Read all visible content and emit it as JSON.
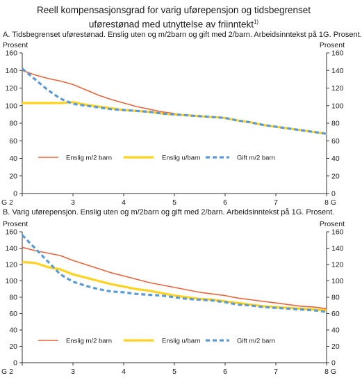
{
  "figure": {
    "title_line1": "Reell kompensasjonsgrad for varig uførepensjon og tidsbegrenset",
    "title_line2": "uførestønad med utnyttelse av friinntekt",
    "title_footnote": "1)"
  },
  "colors": {
    "enslig_m2_barn": "#e8643a",
    "enslig_u_barn": "#ffd21f",
    "gift_m2_barn": "#5b9bd5",
    "axis": "#333333"
  },
  "chart_data": [
    {
      "type": "line",
      "panel_title": "A.  Tidsbegrenset uførestønad. Enslig uten og m/2barn og gift med 2/barn. Arbeidsinntekst på 1G. Prosent.",
      "ylabel_left": "Prosent",
      "ylabel_right": "Prosent",
      "ylim": [
        0,
        160
      ],
      "yticks": [
        0,
        20,
        40,
        60,
        80,
        100,
        120,
        140,
        160
      ],
      "xlim": [
        2,
        8
      ],
      "xticks": [
        2,
        3,
        4,
        5,
        6,
        7,
        8
      ],
      "xtick_labels": [
        "G 2",
        "3",
        "4",
        "5",
        "6",
        "7",
        "8 G"
      ],
      "legend_position": "inside-bottom",
      "x": [
        2.0,
        2.25,
        2.5,
        2.75,
        3.0,
        3.25,
        3.5,
        3.75,
        4.0,
        4.25,
        4.5,
        4.75,
        5.0,
        5.25,
        5.5,
        5.75,
        6.0,
        6.25,
        6.5,
        6.75,
        7.0,
        7.25,
        7.5,
        7.75,
        8.0
      ],
      "series": [
        {
          "name": "Enslig m/2 barn",
          "color_key": "enslig_m2_barn",
          "values": [
            140,
            135,
            131,
            128,
            124,
            118,
            112,
            107,
            103,
            99,
            96,
            93,
            91,
            89,
            88,
            87,
            86,
            83,
            81,
            78,
            76,
            74,
            72,
            70,
            68
          ]
        },
        {
          "name": "Enslig u/barn",
          "color_key": "enslig_u_barn",
          "values": [
            103,
            103,
            103,
            103,
            104,
            101,
            99,
            97,
            95,
            94,
            93,
            91,
            90,
            89,
            88,
            87,
            86,
            83,
            81,
            78,
            76,
            74,
            72,
            70,
            68
          ]
        },
        {
          "name": "Gift m/2 barn",
          "color_key": "gift_m2_barn",
          "values": [
            142,
            130,
            118,
            108,
            102,
            100,
            98,
            96,
            95,
            94,
            93,
            91,
            90,
            89,
            88,
            87,
            86,
            83,
            81,
            78,
            76,
            74,
            72,
            70,
            68
          ]
        }
      ]
    },
    {
      "type": "line",
      "panel_title": "B.  Varig uførepensjon. Enslig uten og m/2barn og gift med 2/barn. Arbeidsinntekst på 1G. Prosent.",
      "ylabel_left": "Prosent",
      "ylabel_right": "Prosent",
      "ylim": [
        0,
        160
      ],
      "yticks": [
        0,
        20,
        40,
        60,
        80,
        100,
        120,
        140,
        160
      ],
      "xlim": [
        2,
        8
      ],
      "xticks": [
        2,
        3,
        4,
        5,
        6,
        7,
        8
      ],
      "xtick_labels": [
        "G 2",
        "3",
        "4",
        "5",
        "6",
        "7",
        "8 G"
      ],
      "legend_position": "inside-bottom",
      "x": [
        2.0,
        2.25,
        2.5,
        2.75,
        3.0,
        3.25,
        3.5,
        3.75,
        4.0,
        4.25,
        4.5,
        4.75,
        5.0,
        5.25,
        5.5,
        5.75,
        6.0,
        6.25,
        6.5,
        6.75,
        7.0,
        7.25,
        7.5,
        7.75,
        8.0
      ],
      "series": [
        {
          "name": "Enslig m/2 barn",
          "color_key": "enslig_m2_barn",
          "values": [
            141,
            137,
            134,
            131,
            125,
            120,
            115,
            110,
            106,
            102,
            98,
            95,
            92,
            89,
            86,
            84,
            82,
            79,
            77,
            75,
            73,
            71,
            69,
            68,
            66
          ]
        },
        {
          "name": "Enslig u/barn",
          "color_key": "enslig_u_barn",
          "values": [
            123,
            122,
            117,
            114,
            108,
            104,
            100,
            96,
            93,
            90,
            88,
            85,
            82,
            80,
            78,
            77,
            75,
            73,
            71,
            69,
            68,
            67,
            66,
            65,
            64
          ]
        },
        {
          "name": "Gift m/2 barn",
          "color_key": "gift_m2_barn",
          "values": [
            156,
            140,
            124,
            108,
            99,
            94,
            90,
            87,
            86,
            84,
            83,
            82,
            80,
            78,
            77,
            76,
            74,
            71,
            70,
            68,
            67,
            66,
            65,
            64,
            62
          ]
        }
      ]
    }
  ]
}
